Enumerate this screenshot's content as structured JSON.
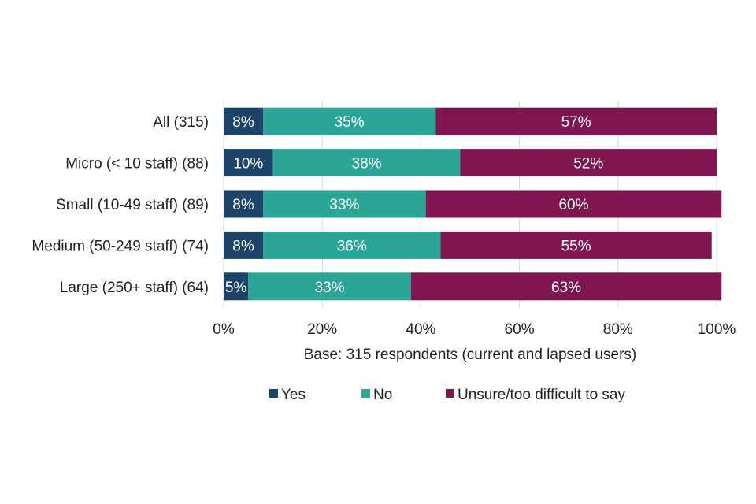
{
  "chart_data": {
    "type": "bar",
    "orientation": "horizontal",
    "stacked": true,
    "categories": [
      "All (315)",
      "Micro (< 10 staff) (88)",
      "Small (10-49 staff) (89)",
      "Medium (50-249 staff) (74)",
      "Large (250+ staff) (64)"
    ],
    "series": [
      {
        "name": "Yes",
        "color": "#1b4468",
        "values": [
          8,
          10,
          8,
          8,
          5
        ],
        "labels": [
          "8%",
          "10%",
          "8%",
          "8%",
          "5%"
        ]
      },
      {
        "name": "No",
        "color": "#2aa596",
        "values": [
          35,
          38,
          33,
          36,
          33
        ],
        "labels": [
          "35%",
          "38%",
          "33%",
          "36%",
          "33%"
        ]
      },
      {
        "name": "Unsure/too difficult to say",
        "color": "#801650",
        "values": [
          57,
          52,
          60,
          55,
          63
        ],
        "labels": [
          "57%",
          "52%",
          "60%",
          "55%",
          "63%"
        ]
      }
    ],
    "x_ticks": [
      "0%",
      "20%",
      "40%",
      "60%",
      "80%",
      "100%"
    ],
    "xlim": [
      0,
      100
    ],
    "xlabel": "Base: 315 respondents (current and lapsed users)",
    "ylabel": "",
    "title": "",
    "grid": true,
    "legend_position": "bottom"
  }
}
